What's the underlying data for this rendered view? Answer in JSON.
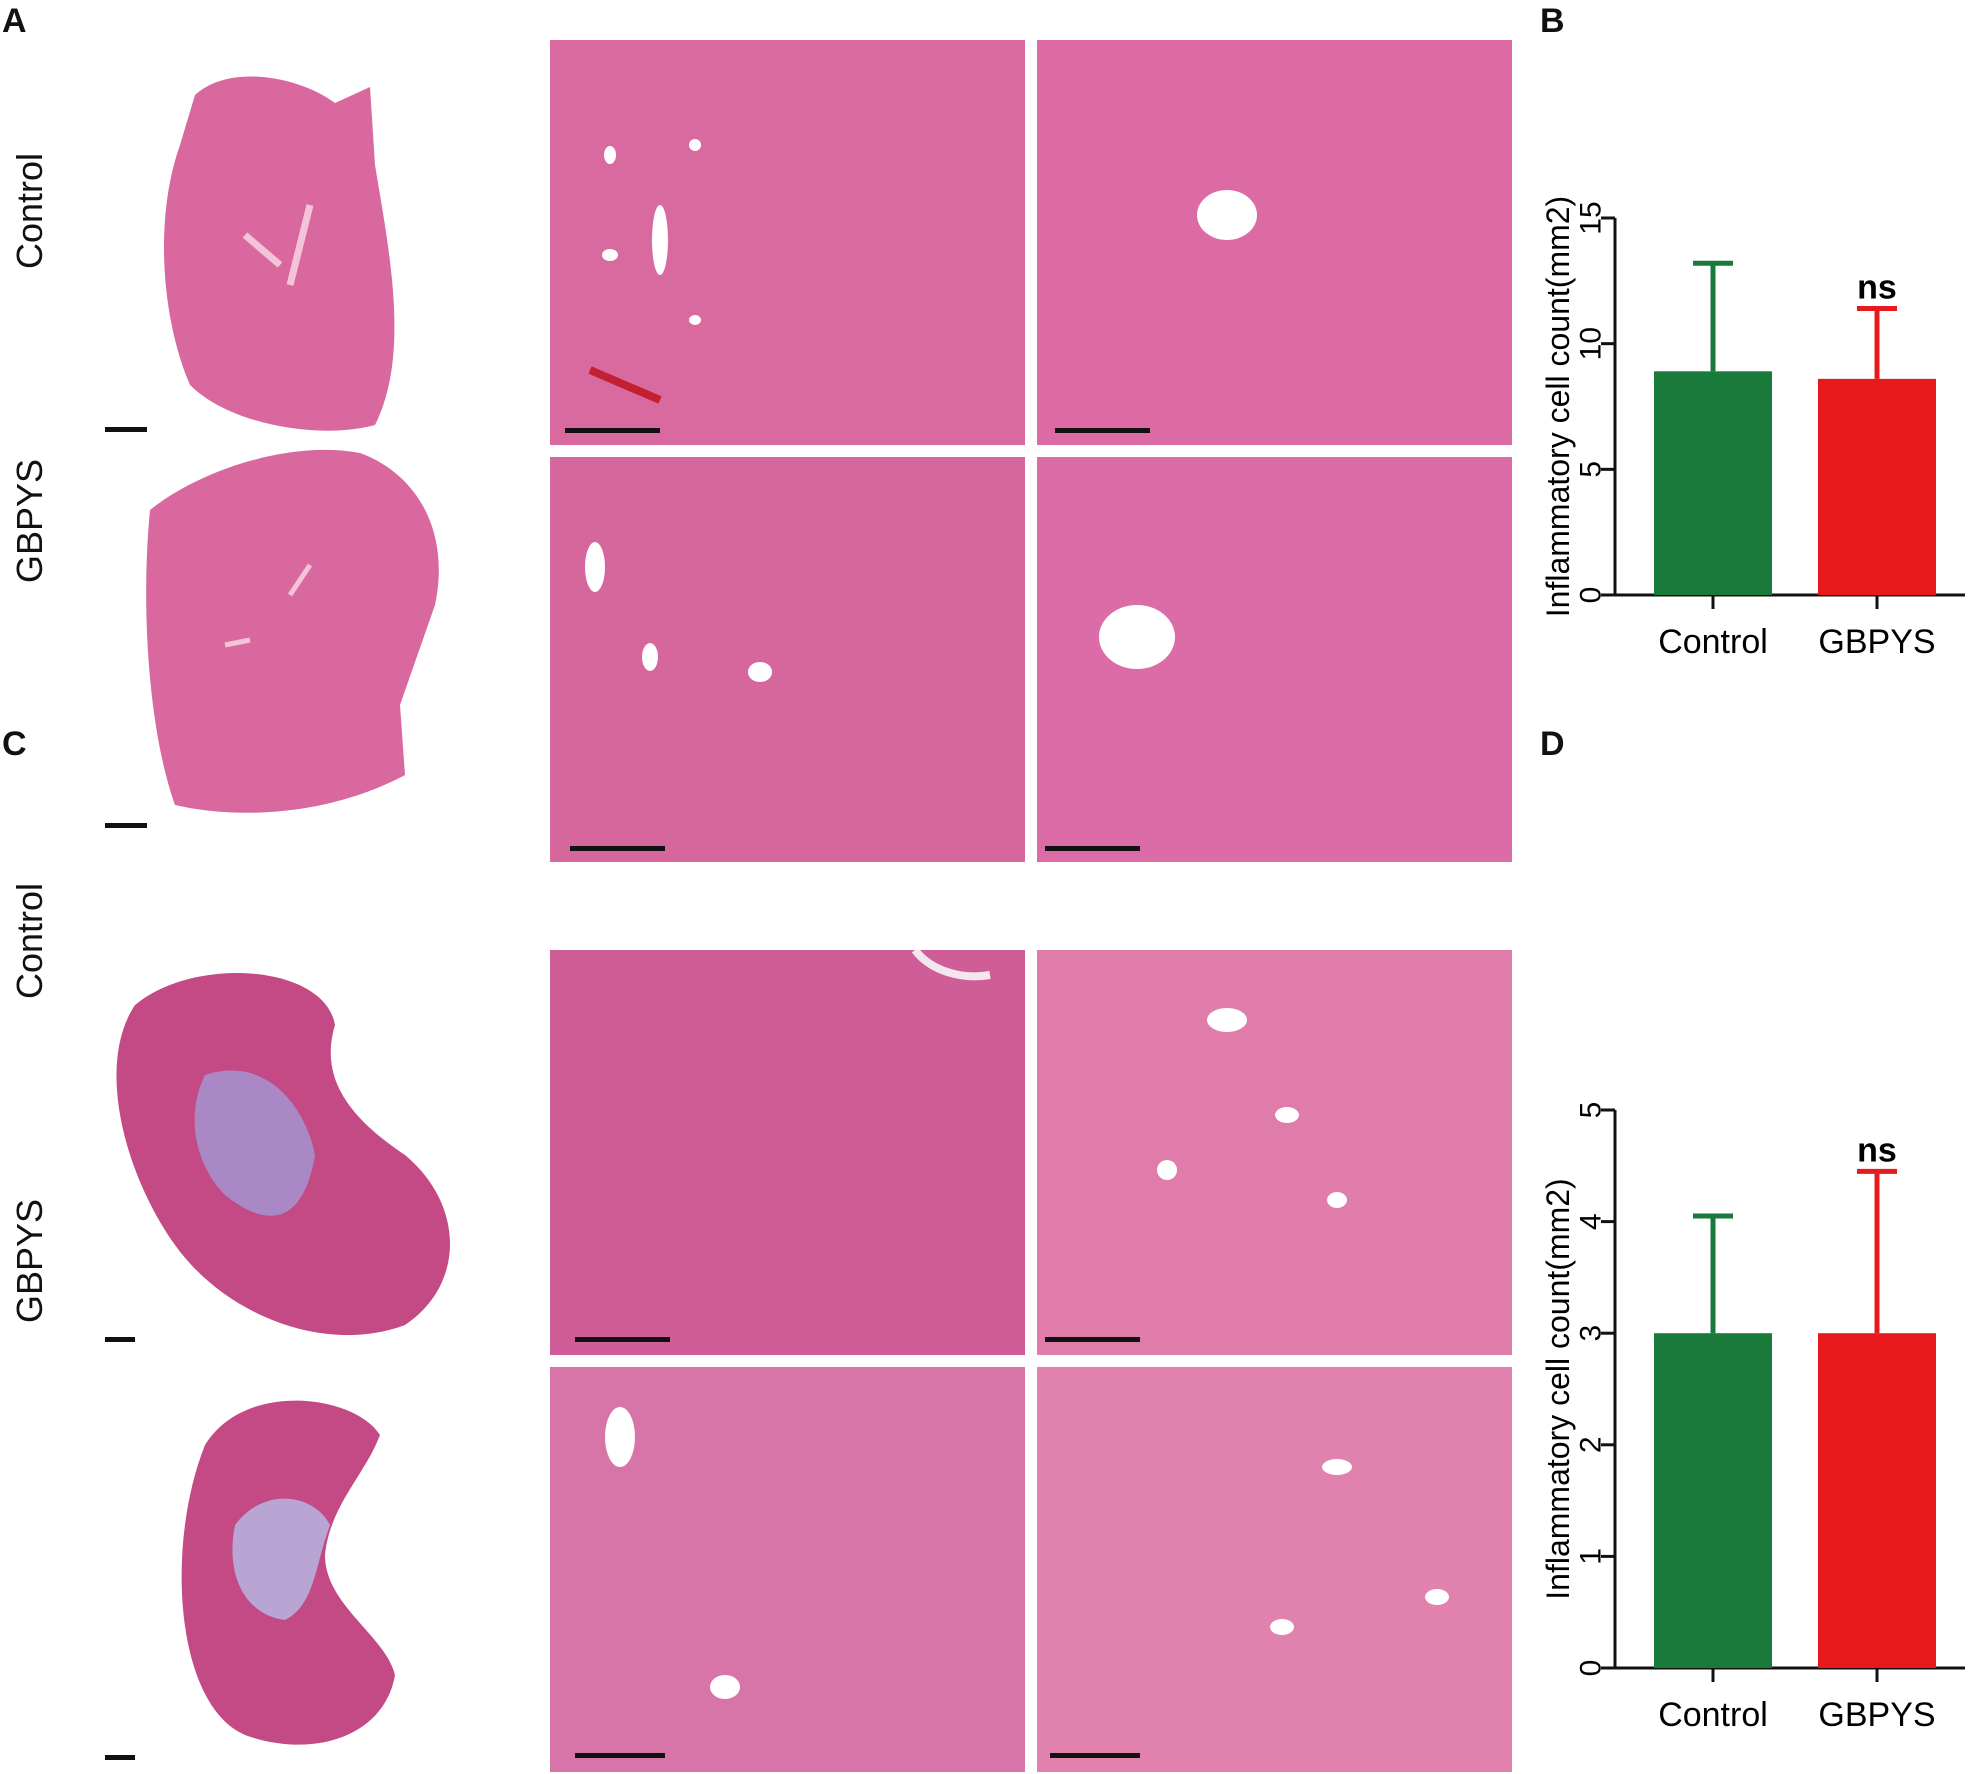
{
  "panels": {
    "A": {
      "letter": "A",
      "rows": [
        "Control",
        "GBPYS"
      ]
    },
    "B": {
      "letter": "B"
    },
    "C": {
      "letter": "C",
      "rows": [
        "Control",
        "GBPYS"
      ]
    },
    "D": {
      "letter": "D"
    }
  },
  "colors": {
    "control": "#1a7a3c",
    "gbpys": "#e8191c",
    "liver": "#d9689e",
    "kidney": "#c44a86"
  },
  "chart_data": [
    {
      "panel": "B",
      "type": "bar",
      "categories": [
        "Control",
        "GBPYS"
      ],
      "values": [
        8.9,
        8.6
      ],
      "errors_upper": [
        13.2,
        11.4
      ],
      "ylabel": "Inflammatory cell count(mm2)",
      "ylim": [
        0,
        15
      ],
      "yticks": [
        "0",
        "5",
        "10",
        "15"
      ],
      "annotations": [
        {
          "category": "GBPYS",
          "text": "ns"
        }
      ],
      "colors": [
        "#1a7a3c",
        "#e8191c"
      ]
    },
    {
      "panel": "D",
      "type": "bar",
      "categories": [
        "Control",
        "GBPYS"
      ],
      "values": [
        3.0,
        3.0
      ],
      "errors_upper": [
        4.05,
        4.45
      ],
      "ylabel": "Inflammatory cell count(mm2)",
      "ylim": [
        0,
        5
      ],
      "yticks": [
        "0",
        "1",
        "2",
        "3",
        "4",
        "5"
      ],
      "annotations": [
        {
          "category": "GBPYS",
          "text": "ns"
        }
      ],
      "colors": [
        "#1a7a3c",
        "#e8191c"
      ]
    }
  ]
}
